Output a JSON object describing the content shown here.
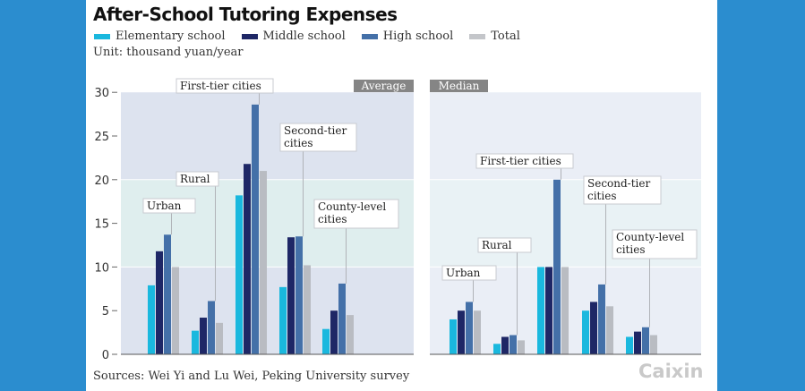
{
  "title": "After-School Tutoring Expenses",
  "unit": "Unit: thousand yuan/year",
  "source": "Sources: Wei Yi and Lu Wei, Peking University survey",
  "logo": "Caixin",
  "colors": {
    "Elementary school": "#1ab8de",
    "Middle school": "#1e2766",
    "High school": "#4470a8",
    "Total": "#b9bcc2",
    "background": "#2b8dcf"
  },
  "legend": [
    "Elementary school",
    "Middle school",
    "High school",
    "Total"
  ],
  "chart_data": [
    {
      "type": "bar",
      "tag": "Average",
      "categories": [
        "Urban",
        "Rural",
        "First-tier cities",
        "Second-tier cities",
        "County-level cities"
      ],
      "ylim": [
        0,
        30
      ],
      "yticks": [
        "0",
        "5",
        "10",
        "15",
        "20",
        "25",
        "30"
      ],
      "series": [
        {
          "name": "Elementary school",
          "values": [
            7.9,
            2.7,
            18.2,
            7.7,
            2.9
          ]
        },
        {
          "name": "Middle school",
          "values": [
            11.8,
            4.2,
            21.8,
            13.4,
            5.0
          ]
        },
        {
          "name": "High school",
          "values": [
            13.7,
            6.1,
            28.6,
            13.5,
            8.1
          ]
        },
        {
          "name": "Total",
          "values": [
            10.0,
            3.6,
            21.0,
            10.2,
            4.5
          ]
        }
      ]
    },
    {
      "type": "bar",
      "tag": "Median",
      "categories": [
        "Urban",
        "Rural",
        "First-tier cities",
        "Second-tier cities",
        "County-level cities"
      ],
      "ylim": [
        0,
        30
      ],
      "series": [
        {
          "name": "Elementary school",
          "values": [
            4.0,
            1.2,
            10.0,
            5.0,
            2.0
          ]
        },
        {
          "name": "Middle school",
          "values": [
            5.0,
            2.0,
            10.0,
            6.0,
            2.6
          ]
        },
        {
          "name": "High school",
          "values": [
            6.0,
            2.2,
            20.0,
            8.0,
            3.1
          ]
        },
        {
          "name": "Total",
          "values": [
            5.0,
            1.6,
            10.0,
            5.5,
            2.2
          ]
        }
      ]
    }
  ]
}
